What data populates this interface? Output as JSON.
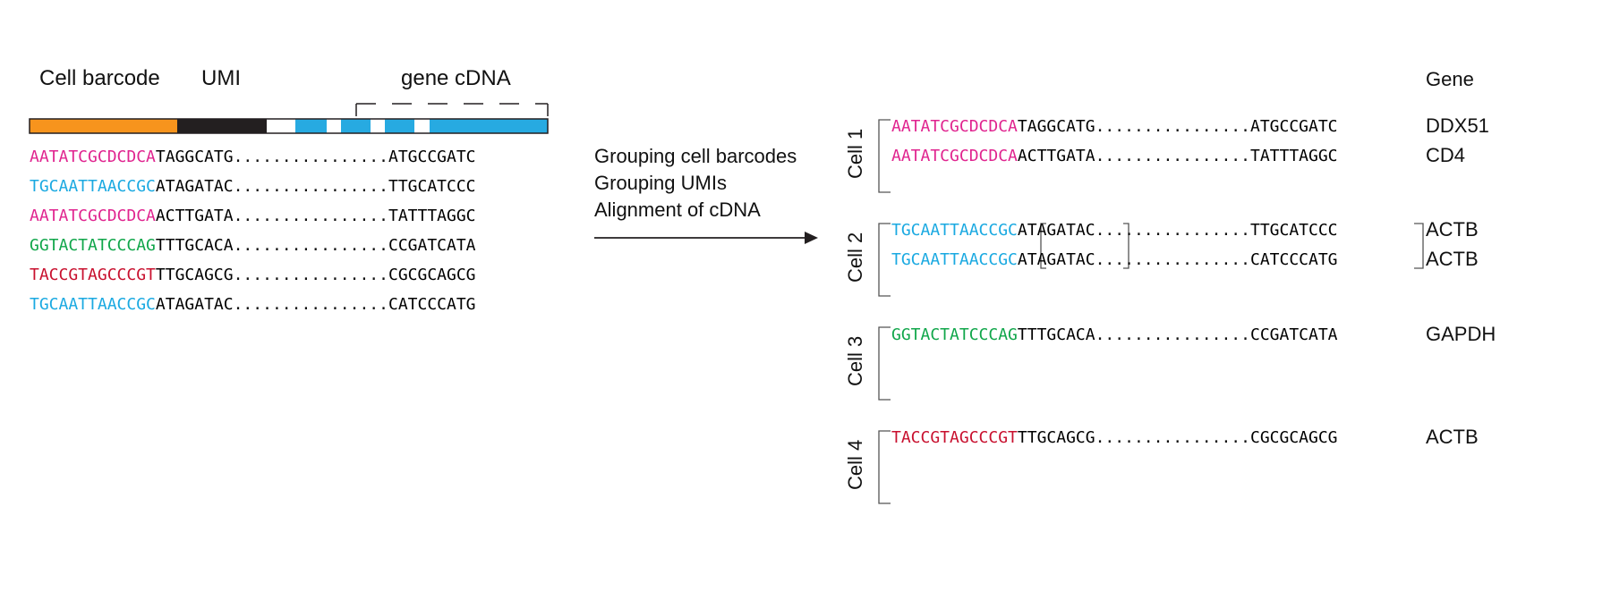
{
  "headers": {
    "cell_barcode": "Cell barcode",
    "umi": "UMI",
    "gene_cdna": "gene cDNA",
    "gene": "Gene"
  },
  "colors": {
    "orange": "#f7941d",
    "black": "#231f20",
    "blue": "#27aae1",
    "magenta": "#e0248f",
    "cyan": "#1aa9e1",
    "green": "#10a64a",
    "red": "#c8102e"
  },
  "reads": [
    {
      "barcode": "AATATCGCDCDCA",
      "color": "#e0248f",
      "umi": "TAGGCATG",
      "dots": "................",
      "cdna": "ATGCCGATC"
    },
    {
      "barcode": "TGCAATTAACCGC",
      "color": "#1aa9e1",
      "umi": "ATAGATAC",
      "dots": "................",
      "cdna": "TTGCATCCC"
    },
    {
      "barcode": "AATATCGCDCDCA",
      "color": "#e0248f",
      "umi": "ACTTGATA",
      "dots": "................",
      "cdna": "TATTTAGGC"
    },
    {
      "barcode": "GGTACTATCCCAG",
      "color": "#10a64a",
      "umi": "TTTGCACA",
      "dots": "................",
      "cdna": "CCGATCATA"
    },
    {
      "barcode": "TACCGTAGCCCGT",
      "color": "#c8102e",
      "umi": "TTGCAGCG",
      "dots": "................",
      "cdna": "CGCGCAGCG"
    },
    {
      "barcode": "TGCAATTAACCGC",
      "color": "#1aa9e1",
      "umi": "ATAGATAC",
      "dots": "................",
      "cdna": "CATCCCATG"
    }
  ],
  "process": {
    "line1": "Grouping cell barcodes",
    "line2": "Grouping UMIs",
    "line3": "Alignment of cDNA"
  },
  "cells": [
    {
      "label": "Cell 1",
      "reads": [
        {
          "barcode": "AATATCGCDCDCA",
          "color": "#e0248f",
          "umi": "TAGGCATG",
          "dots": "................",
          "cdna": "ATGCCGATC",
          "gene": "DDX51"
        },
        {
          "barcode": "AATATCGCDCDCA",
          "color": "#e0248f",
          "umi": "ACTTGATA",
          "dots": "................",
          "cdna": "TATTTAGGC",
          "gene": "CD4"
        }
      ]
    },
    {
      "label": "Cell 2",
      "reads": [
        {
          "barcode": "TGCAATTAACCGC",
          "color": "#1aa9e1",
          "umi": "ATAGATAC",
          "dots": "................",
          "cdna": "TTGCATCCC",
          "gene": "ACTB"
        },
        {
          "barcode": "TGCAATTAACCGC",
          "color": "#1aa9e1",
          "umi": "ATAGATAC",
          "dots": "................",
          "cdna": "CATCCCATG",
          "gene": "ACTB"
        }
      ]
    },
    {
      "label": "Cell 3",
      "reads": [
        {
          "barcode": "GGTACTATCCCAG",
          "color": "#10a64a",
          "umi": "TTTGCACA",
          "dots": "................",
          "cdna": "CCGATCATA",
          "gene": "GAPDH"
        }
      ]
    },
    {
      "label": "Cell 4",
      "reads": [
        {
          "barcode": "TACCGTAGCCCGT",
          "color": "#c8102e",
          "umi": "TTGCAGCG",
          "dots": "................",
          "cdna": "CGCGCAGCG",
          "gene": "ACTB"
        }
      ]
    }
  ]
}
